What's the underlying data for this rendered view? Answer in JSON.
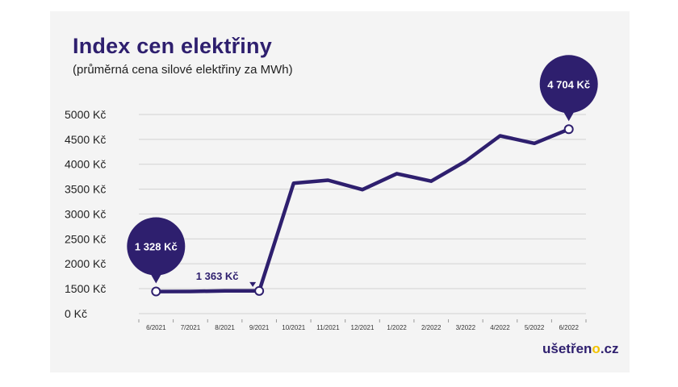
{
  "header": {
    "title": "Index cen elektřiny",
    "subtitle": "(průměrná cena silové elektřiny za MWh)"
  },
  "brand": {
    "prefix": "ušetřen",
    "accent": "o",
    "suffix": ".cz"
  },
  "colors": {
    "line": "#2e1f6e",
    "bubble": "#2e1f6e",
    "grid": "#d2d2d2",
    "brand_accent": "#f2c200"
  },
  "chart_data": {
    "type": "line",
    "title": "Index cen elektřiny",
    "subtitle": "(průměrná cena silové elektřiny za MWh)",
    "xlabel": "",
    "ylabel": "",
    "categories": [
      "6/2021",
      "7/2021",
      "8/2021",
      "9/2021",
      "10/2021",
      "11/2021",
      "12/2021",
      "1/2022",
      "2/2022",
      "3/2022",
      "4/2022",
      "5/2022",
      "6/2022"
    ],
    "y_ticks": [
      0,
      1500,
      2000,
      2500,
      3000,
      3500,
      4000,
      4500,
      5000
    ],
    "y_tick_labels": [
      "0 Kč",
      "1500 Kč",
      "2000 Kč",
      "2500 Kč",
      "3000 Kč",
      "3500 Kč",
      "4000 Kč",
      "4500 Kč",
      "5000 Kč"
    ],
    "ylim": [
      0,
      5000
    ],
    "axis_break": "0 to 1500",
    "grid": true,
    "series": [
      {
        "values": [
          1328,
          1330,
          1363,
          1363,
          3620,
          3680,
          3490,
          3810,
          3660,
          4060,
          4570,
          4420,
          4704
        ]
      }
    ],
    "annotations": [
      {
        "text": "1 328 Kč",
        "index": 0,
        "style": "bubble"
      },
      {
        "text": "1 363 Kč",
        "index": 3,
        "style": "label"
      },
      {
        "text": "4 704 Kč",
        "index": 12,
        "style": "bubble"
      }
    ]
  }
}
